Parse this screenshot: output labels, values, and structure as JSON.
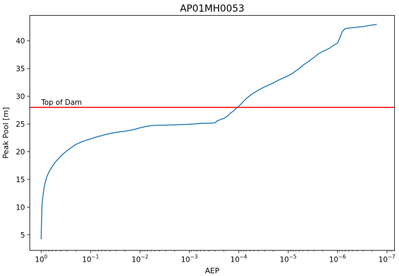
{
  "chart_data": {
    "type": "line",
    "title": "AP01MH0053",
    "xlabel": "AEP",
    "ylabel": "Peak Pool [m]",
    "x_scale": "log",
    "x_reversed": true,
    "xlim": [
      1.7,
      7e-08
    ],
    "ylim": [
      2.2,
      44.6
    ],
    "grid": false,
    "x_ticks": [
      {
        "value": 1,
        "base": "10",
        "exp": "0"
      },
      {
        "value": 0.1,
        "base": "10",
        "exp": "−1"
      },
      {
        "value": 0.01,
        "base": "10",
        "exp": "−2"
      },
      {
        "value": 0.001,
        "base": "10",
        "exp": "−3"
      },
      {
        "value": 0.0001,
        "base": "10",
        "exp": "−4"
      },
      {
        "value": 1e-05,
        "base": "10",
        "exp": "−5"
      },
      {
        "value": 1e-06,
        "base": "10",
        "exp": "−6"
      },
      {
        "value": 1e-07,
        "base": "10",
        "exp": "−7"
      }
    ],
    "y_ticks": [
      {
        "value": 5,
        "label": "5"
      },
      {
        "value": 10,
        "label": "10"
      },
      {
        "value": 15,
        "label": "15"
      },
      {
        "value": 20,
        "label": "20"
      },
      {
        "value": 25,
        "label": "25"
      },
      {
        "value": 30,
        "label": "30"
      },
      {
        "value": 35,
        "label": "35"
      },
      {
        "value": 40,
        "label": "40"
      }
    ],
    "series": [
      {
        "color": "#1f77b4",
        "points": [
          [
            1.0,
            4.2
          ],
          [
            0.99,
            6.0
          ],
          [
            0.98,
            8.0
          ],
          [
            0.97,
            9.5
          ],
          [
            0.95,
            11.0
          ],
          [
            0.92,
            12.0
          ],
          [
            0.88,
            13.3
          ],
          [
            0.85,
            14.0
          ],
          [
            0.8,
            15.0
          ],
          [
            0.75,
            15.7
          ],
          [
            0.7,
            16.3
          ],
          [
            0.65,
            16.8
          ],
          [
            0.6,
            17.3
          ],
          [
            0.55,
            17.8
          ],
          [
            0.5,
            18.3
          ],
          [
            0.45,
            18.7
          ],
          [
            0.4,
            19.2
          ],
          [
            0.35,
            19.7
          ],
          [
            0.3,
            20.2
          ],
          [
            0.25,
            20.7
          ],
          [
            0.2,
            21.3
          ],
          [
            0.15,
            21.8
          ],
          [
            0.12,
            22.1
          ],
          [
            0.1,
            22.3
          ],
          [
            0.08,
            22.6
          ],
          [
            0.06,
            22.9
          ],
          [
            0.05,
            23.1
          ],
          [
            0.04,
            23.3
          ],
          [
            0.03,
            23.5
          ],
          [
            0.02,
            23.7
          ],
          [
            0.015,
            23.9
          ],
          [
            0.012,
            24.1
          ],
          [
            0.01,
            24.3
          ],
          [
            0.008,
            24.5
          ],
          [
            0.006,
            24.7
          ],
          [
            0.005,
            24.75
          ],
          [
            0.003,
            24.8
          ],
          [
            0.002,
            24.85
          ],
          [
            0.001,
            24.95
          ],
          [
            0.0008,
            25.0
          ],
          [
            0.0006,
            25.1
          ],
          [
            0.0004,
            25.15
          ],
          [
            0.0003,
            25.2
          ],
          [
            0.00028,
            25.5
          ],
          [
            0.00025,
            25.7
          ],
          [
            0.00022,
            25.9
          ],
          [
            0.0002,
            26.0
          ],
          [
            0.00017,
            26.4
          ],
          [
            0.00015,
            26.9
          ],
          [
            0.00013,
            27.3
          ],
          [
            0.00012,
            27.6
          ],
          [
            0.0001,
            28.2
          ],
          [
            9e-05,
            28.6
          ],
          [
            8e-05,
            29.1
          ],
          [
            7e-05,
            29.6
          ],
          [
            6e-05,
            30.1
          ],
          [
            5e-05,
            30.6
          ],
          [
            4e-05,
            31.1
          ],
          [
            3e-05,
            31.7
          ],
          [
            2e-05,
            32.4
          ],
          [
            1.5e-05,
            33.0
          ],
          [
            1e-05,
            33.7
          ],
          [
            8e-06,
            34.2
          ],
          [
            6e-06,
            35.0
          ],
          [
            5e-06,
            35.6
          ],
          [
            4e-06,
            36.2
          ],
          [
            3e-06,
            37.0
          ],
          [
            2.5e-06,
            37.6
          ],
          [
            2e-06,
            38.1
          ],
          [
            1.5e-06,
            38.6
          ],
          [
            1.2e-06,
            39.2
          ],
          [
            1e-06,
            39.6
          ],
          [
            9e-07,
            40.5
          ],
          [
            8e-07,
            41.7
          ],
          [
            7e-07,
            42.2
          ],
          [
            6e-07,
            42.3
          ],
          [
            3e-07,
            42.6
          ],
          [
            1.6e-07,
            43.0
          ]
        ]
      }
    ],
    "annotations": [
      {
        "type": "hline",
        "y": 28.0,
        "color": "#ff0000",
        "label": "Top of Dam"
      }
    ]
  }
}
